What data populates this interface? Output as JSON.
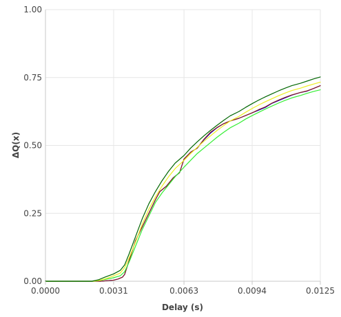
{
  "chart_data": {
    "type": "line",
    "xlabel": "Delay (s)",
    "ylabel": "ΔQ(x)",
    "xlim": [
      0,
      0.0125
    ],
    "ylim": [
      0,
      1
    ],
    "x_ticks": [
      0,
      0.0031,
      0.0063,
      0.0094,
      0.0125
    ],
    "x_tick_labels": [
      "0.0000",
      "0.0031",
      "0.0063",
      "0.0094",
      "0.0125"
    ],
    "y_ticks": [
      0,
      0.25,
      0.5,
      0.75,
      1
    ],
    "y_tick_labels": [
      "0.00",
      "0.25",
      "0.50",
      "0.75",
      "1.00"
    ],
    "grid": true,
    "legend": "none",
    "series": [
      {
        "color": "#0000dd",
        "points": [
          [
            0,
            0
          ],
          [
            0.0025,
            0
          ],
          [
            0.0028,
            0.002
          ],
          [
            0.0031,
            0.004
          ],
          [
            0.0033,
            0.008
          ],
          [
            0.0035,
            0.015
          ],
          [
            0.0036,
            0.025
          ],
          [
            0.0037,
            0.05
          ],
          [
            0.0039,
            0.1
          ],
          [
            0.0041,
            0.15
          ],
          [
            0.0044,
            0.2
          ],
          [
            0.0047,
            0.25
          ],
          [
            0.005,
            0.3
          ],
          [
            0.0052,
            0.33
          ],
          [
            0.0055,
            0.35
          ],
          [
            0.0058,
            0.38
          ],
          [
            0.0061,
            0.4
          ],
          [
            0.0063,
            0.45
          ],
          [
            0.0066,
            0.475
          ],
          [
            0.0069,
            0.49
          ],
          [
            0.0072,
            0.52
          ],
          [
            0.0075,
            0.545
          ],
          [
            0.0078,
            0.565
          ],
          [
            0.0081,
            0.58
          ],
          [
            0.0084,
            0.59
          ],
          [
            0.0088,
            0.6
          ],
          [
            0.0091,
            0.61
          ],
          [
            0.0094,
            0.62
          ],
          [
            0.0097,
            0.63
          ],
          [
            0.01,
            0.64
          ],
          [
            0.0103,
            0.655
          ],
          [
            0.0106,
            0.665
          ],
          [
            0.0109,
            0.675
          ],
          [
            0.0112,
            0.685
          ],
          [
            0.0116,
            0.695
          ],
          [
            0.0119,
            0.7
          ],
          [
            0.0122,
            0.71
          ],
          [
            0.0125,
            0.72
          ]
        ]
      },
      {
        "color": "#8b1a1a",
        "points": [
          [
            0,
            0
          ],
          [
            0.0025,
            0
          ],
          [
            0.0028,
            0.002
          ],
          [
            0.0031,
            0.004
          ],
          [
            0.0033,
            0.008
          ],
          [
            0.0035,
            0.015
          ],
          [
            0.0036,
            0.025
          ],
          [
            0.0037,
            0.05
          ],
          [
            0.0039,
            0.1
          ],
          [
            0.0041,
            0.15
          ],
          [
            0.0044,
            0.2
          ],
          [
            0.0047,
            0.25
          ],
          [
            0.005,
            0.3
          ],
          [
            0.0052,
            0.33
          ],
          [
            0.0055,
            0.35
          ],
          [
            0.0058,
            0.38
          ],
          [
            0.0061,
            0.4
          ],
          [
            0.0063,
            0.45
          ],
          [
            0.0066,
            0.475
          ],
          [
            0.0069,
            0.49
          ],
          [
            0.0072,
            0.522
          ],
          [
            0.0075,
            0.548
          ],
          [
            0.0078,
            0.566
          ],
          [
            0.0081,
            0.58
          ],
          [
            0.0084,
            0.59
          ],
          [
            0.0088,
            0.6
          ],
          [
            0.0091,
            0.61
          ],
          [
            0.0094,
            0.62
          ],
          [
            0.0097,
            0.632
          ],
          [
            0.01,
            0.642
          ],
          [
            0.0103,
            0.656
          ],
          [
            0.0106,
            0.667
          ],
          [
            0.0109,
            0.677
          ],
          [
            0.0112,
            0.686
          ],
          [
            0.0116,
            0.695
          ],
          [
            0.0119,
            0.701
          ],
          [
            0.0122,
            0.71
          ],
          [
            0.0125,
            0.72
          ]
        ]
      },
      {
        "color": "#33ee33",
        "points": [
          [
            0,
            0
          ],
          [
            0.0022,
            0
          ],
          [
            0.0025,
            0.003
          ],
          [
            0.0028,
            0.008
          ],
          [
            0.0031,
            0.013
          ],
          [
            0.0034,
            0.02
          ],
          [
            0.0036,
            0.035
          ],
          [
            0.0038,
            0.07
          ],
          [
            0.0041,
            0.13
          ],
          [
            0.0044,
            0.19
          ],
          [
            0.0047,
            0.24
          ],
          [
            0.005,
            0.29
          ],
          [
            0.0053,
            0.325
          ],
          [
            0.0056,
            0.355
          ],
          [
            0.0059,
            0.385
          ],
          [
            0.0063,
            0.42
          ],
          [
            0.0066,
            0.445
          ],
          [
            0.0069,
            0.47
          ],
          [
            0.0072,
            0.49
          ],
          [
            0.0075,
            0.51
          ],
          [
            0.0078,
            0.53
          ],
          [
            0.0081,
            0.548
          ],
          [
            0.0084,
            0.565
          ],
          [
            0.0088,
            0.582
          ],
          [
            0.0091,
            0.597
          ],
          [
            0.0094,
            0.61
          ],
          [
            0.0097,
            0.622
          ],
          [
            0.01,
            0.634
          ],
          [
            0.0103,
            0.645
          ],
          [
            0.0106,
            0.656
          ],
          [
            0.0109,
            0.666
          ],
          [
            0.0112,
            0.675
          ],
          [
            0.0116,
            0.684
          ],
          [
            0.0119,
            0.692
          ],
          [
            0.0122,
            0.699
          ],
          [
            0.0125,
            0.705
          ]
        ]
      },
      {
        "color": "#eeee22",
        "points": [
          [
            0,
            0
          ],
          [
            0.0022,
            0
          ],
          [
            0.0025,
            0.004
          ],
          [
            0.0028,
            0.011
          ],
          [
            0.0031,
            0.02
          ],
          [
            0.0034,
            0.03
          ],
          [
            0.0036,
            0.05
          ],
          [
            0.0038,
            0.085
          ],
          [
            0.0041,
            0.145
          ],
          [
            0.0044,
            0.21
          ],
          [
            0.0047,
            0.265
          ],
          [
            0.005,
            0.31
          ],
          [
            0.0053,
            0.35
          ],
          [
            0.0056,
            0.385
          ],
          [
            0.0059,
            0.415
          ],
          [
            0.0063,
            0.445
          ],
          [
            0.0066,
            0.47
          ],
          [
            0.0069,
            0.493
          ],
          [
            0.0072,
            0.515
          ],
          [
            0.0075,
            0.535
          ],
          [
            0.0078,
            0.555
          ],
          [
            0.0081,
            0.573
          ],
          [
            0.0084,
            0.59
          ],
          [
            0.0088,
            0.607
          ],
          [
            0.0091,
            0.622
          ],
          [
            0.0094,
            0.636
          ],
          [
            0.0097,
            0.649
          ],
          [
            0.01,
            0.661
          ],
          [
            0.0103,
            0.672
          ],
          [
            0.0106,
            0.683
          ],
          [
            0.0109,
            0.693
          ],
          [
            0.0112,
            0.702
          ],
          [
            0.0116,
            0.711
          ],
          [
            0.0119,
            0.719
          ],
          [
            0.0122,
            0.726
          ],
          [
            0.0125,
            0.733
          ]
        ]
      },
      {
        "color": "#006600",
        "points": [
          [
            0,
            0
          ],
          [
            0.0021,
            0
          ],
          [
            0.0024,
            0.005
          ],
          [
            0.0027,
            0.015
          ],
          [
            0.0031,
            0.027
          ],
          [
            0.0034,
            0.04
          ],
          [
            0.0036,
            0.06
          ],
          [
            0.0038,
            0.1
          ],
          [
            0.0041,
            0.165
          ],
          [
            0.0044,
            0.23
          ],
          [
            0.0047,
            0.285
          ],
          [
            0.005,
            0.33
          ],
          [
            0.0053,
            0.37
          ],
          [
            0.0056,
            0.405
          ],
          [
            0.0059,
            0.435
          ],
          [
            0.0063,
            0.463
          ],
          [
            0.0066,
            0.49
          ],
          [
            0.0069,
            0.513
          ],
          [
            0.0072,
            0.535
          ],
          [
            0.0075,
            0.555
          ],
          [
            0.0078,
            0.574
          ],
          [
            0.0081,
            0.592
          ],
          [
            0.0084,
            0.609
          ],
          [
            0.0088,
            0.625
          ],
          [
            0.0091,
            0.64
          ],
          [
            0.0094,
            0.654
          ],
          [
            0.0097,
            0.667
          ],
          [
            0.01,
            0.679
          ],
          [
            0.0103,
            0.69
          ],
          [
            0.0106,
            0.701
          ],
          [
            0.0109,
            0.711
          ],
          [
            0.0112,
            0.72
          ],
          [
            0.0116,
            0.729
          ],
          [
            0.0119,
            0.737
          ],
          [
            0.0122,
            0.745
          ],
          [
            0.0125,
            0.752
          ]
        ]
      }
    ]
  }
}
